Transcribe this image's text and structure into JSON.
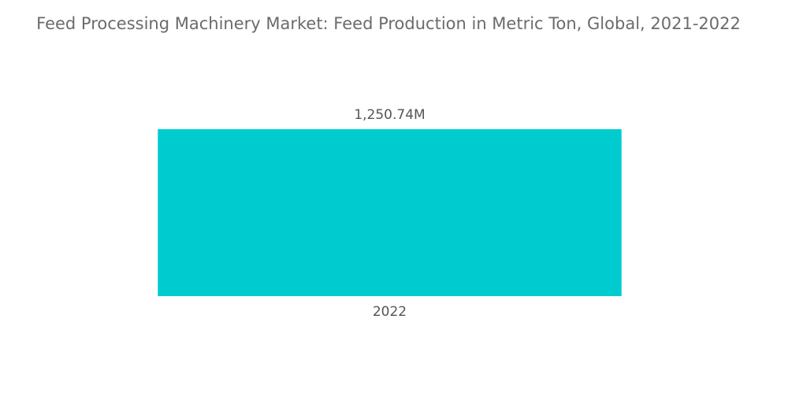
{
  "chart_data": {
    "type": "bar",
    "title": "Feed Processing Machinery Market: Feed Production in Metric Ton, Global, 2021-2022",
    "categories": [
      "2022"
    ],
    "values": [
      1250740000
    ],
    "value_labels": [
      "1,250.74M"
    ],
    "color": "#00ccd0"
  }
}
